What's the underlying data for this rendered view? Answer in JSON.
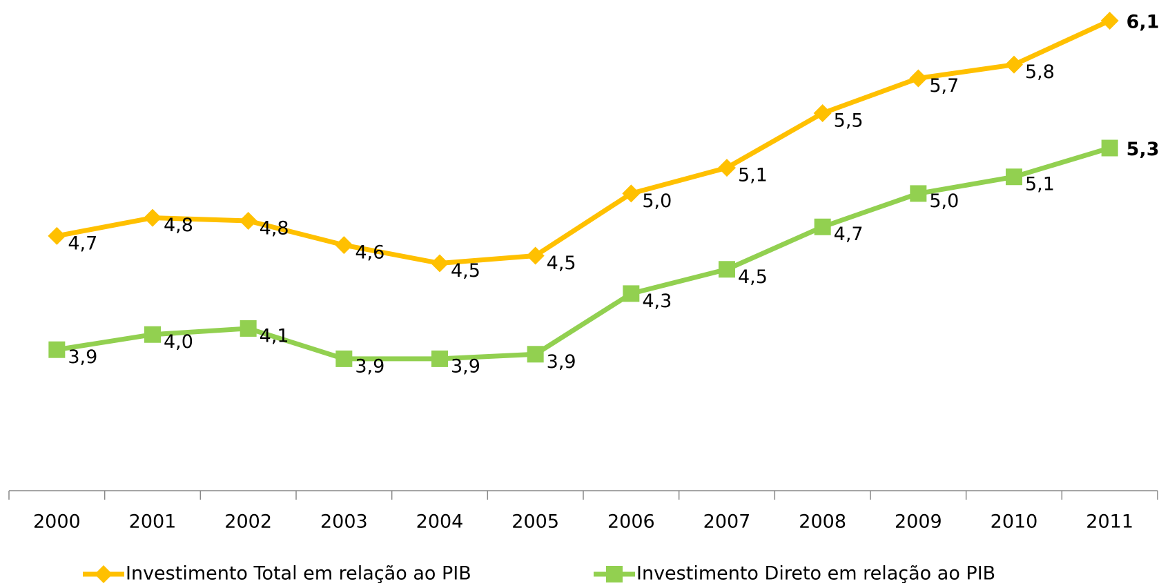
{
  "chart_data": {
    "type": "line",
    "categories": [
      "2000",
      "2001",
      "2002",
      "2003",
      "2004",
      "2005",
      "2006",
      "2007",
      "2008",
      "2009",
      "2010",
      "2011"
    ],
    "series": [
      {
        "name": "Investimento Total em relação ao PIB",
        "color": "#FFC000",
        "marker": "diamond",
        "values": [
          4.68,
          4.8,
          4.78,
          4.62,
          4.5,
          4.55,
          4.96,
          5.13,
          5.49,
          5.72,
          5.81,
          6.1
        ],
        "value_labels": [
          "4,7",
          "4,8",
          "4,8",
          "4,6",
          "4,5",
          "4,5",
          "5,0",
          "5,1",
          "5,5",
          "5,7",
          "5,8",
          "6,1"
        ]
      },
      {
        "name": "Investimento Direto em relação ao PIB",
        "color": "#92D050",
        "marker": "square",
        "values": [
          3.93,
          4.03,
          4.07,
          3.87,
          3.87,
          3.9,
          4.3,
          4.46,
          4.74,
          4.96,
          5.07,
          5.26
        ],
        "value_labels": [
          "3,9",
          "4,0",
          "4,1",
          "3,9",
          "3,9",
          "3,9",
          "4,3",
          "4,5",
          "4,7",
          "5,0",
          "5,1",
          "5,3"
        ]
      }
    ],
    "ylim": [
      3,
      6.2
    ],
    "legend": "bottom"
  }
}
